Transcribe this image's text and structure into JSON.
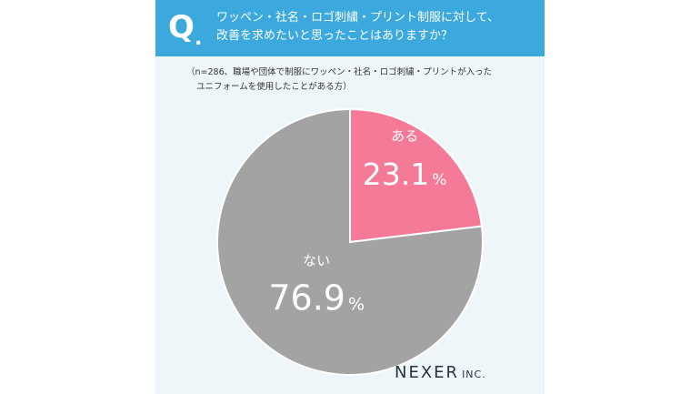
{
  "header": {
    "q_mark": "Q",
    "q_dot": ".",
    "question_line1": "ワッペン・社名・ロゴ刺繍・プリント制服に対して、",
    "question_line2": "改善を求めたいと思ったことはありますか？"
  },
  "note": {
    "line1": "（n=286、職場や団体で制服にワッペン・社名・ロゴ刺繍・プリントが入った",
    "line2": "ユニフォームを使用したことがある方）"
  },
  "chart_data": {
    "type": "pie",
    "slices": [
      {
        "label": "ある",
        "value": 23.1,
        "display": "23.1",
        "unit": "%",
        "color": "#f47a98"
      },
      {
        "label": "ない",
        "value": 76.9,
        "display": "76.9",
        "unit": "%",
        "color": "#a3a3a3"
      }
    ],
    "start": "12 o'clock",
    "direction": "clockwise"
  },
  "logo": {
    "main": "NEXER",
    "sub": "INC."
  },
  "colors": {
    "header": "#3ba8de",
    "background": "#eef6f9"
  }
}
